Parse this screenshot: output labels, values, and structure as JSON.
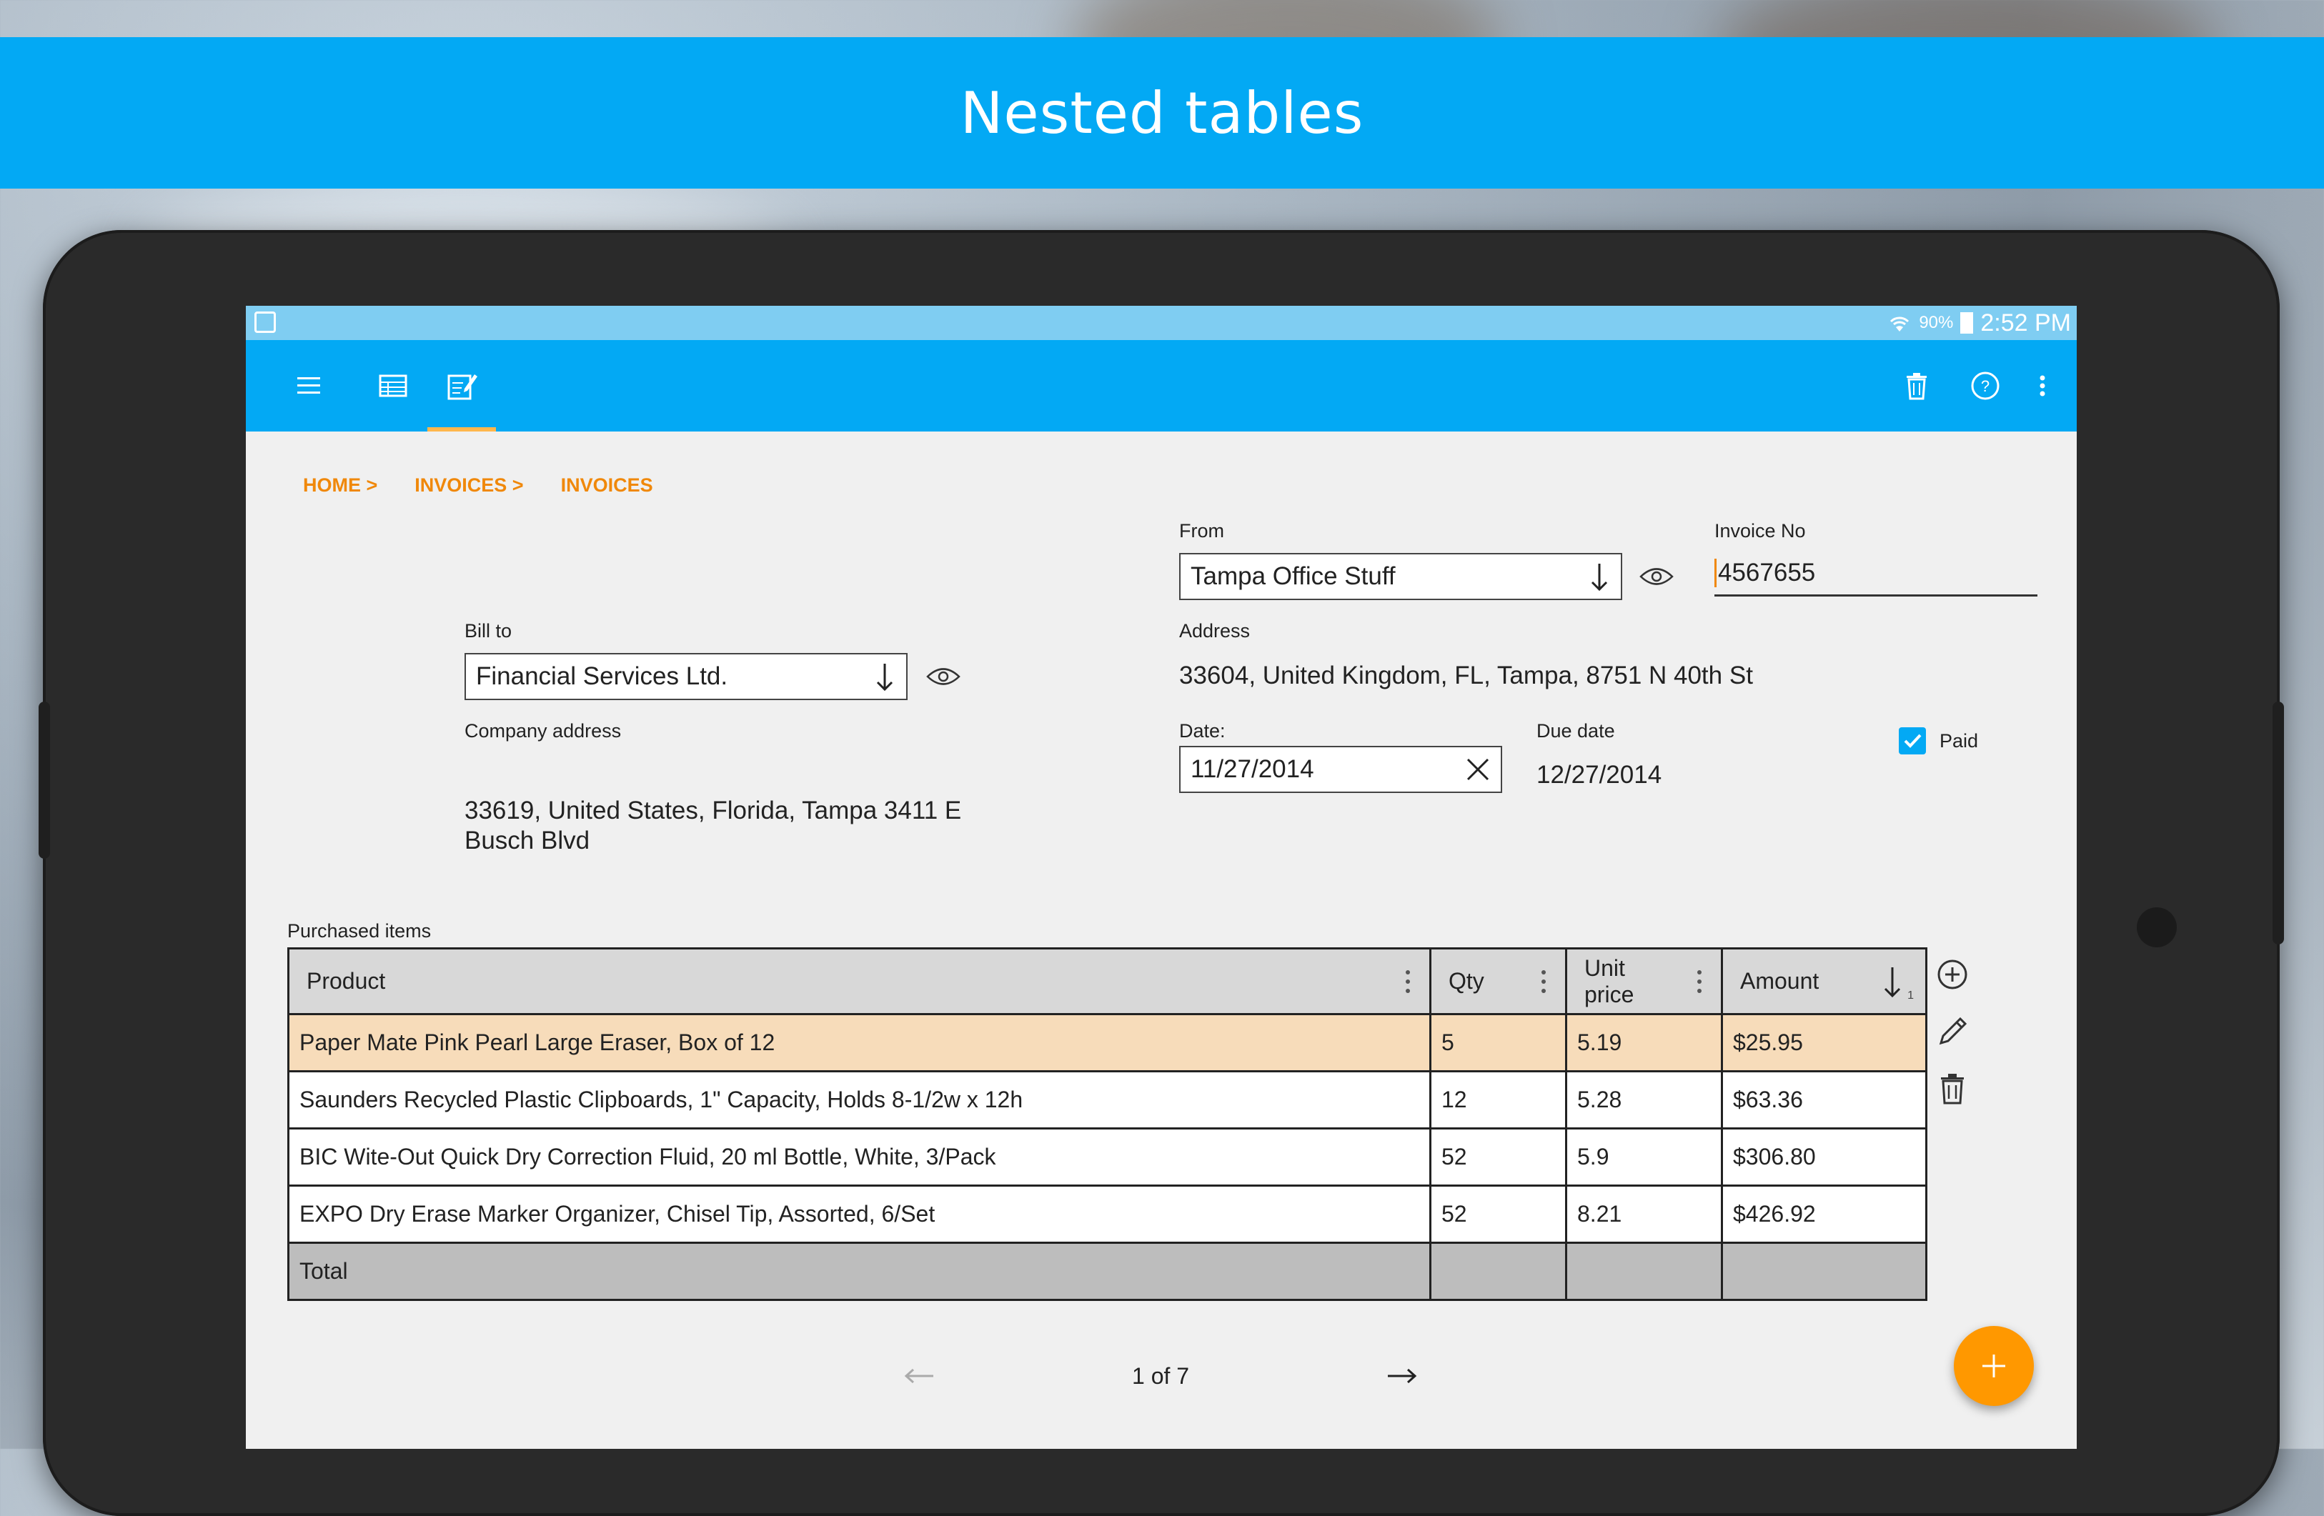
{
  "banner": {
    "title": "Nested tables"
  },
  "statusbar": {
    "battery": "90%",
    "time": "2:52 PM"
  },
  "toolbar": {
    "icons": [
      "menu-icon",
      "table-icon",
      "edit-form-icon",
      "delete-icon",
      "help-icon",
      "more-vert-icon"
    ],
    "active_tab": "edit-form-icon"
  },
  "breadcrumb": [
    "HOME >",
    "INVOICES >",
    "INVOICES"
  ],
  "form": {
    "from_label": "From",
    "from_value": "Tampa Office Stuff",
    "invoice_no_label": "Invoice No",
    "invoice_no_value": "4567655",
    "bill_to_label": "Bill to",
    "bill_to_value": "Financial Services Ltd.",
    "address_label": "Address",
    "address_value": "33604, United Kingdom, FL, Tampa, 8751 N 40th St",
    "company_address_label": "Company address",
    "company_address_value": "33619, United States, Florida, Tampa 3411 E Busch Blvd",
    "date_label": "Date:",
    "date_value": "11/27/2014",
    "due_date_label": "Due date",
    "due_date_value": "12/27/2014",
    "paid_label": "Paid",
    "paid_checked": true
  },
  "items": {
    "label": "Purchased items",
    "columns": [
      "Product",
      "Qty",
      "Unit price",
      "Amount"
    ],
    "sort_column": "Amount",
    "sort_index": "1",
    "rows": [
      {
        "product": "Paper Mate Pink Pearl Large Eraser, Box of 12",
        "qty": "5",
        "unit_price": "5.19",
        "amount": "$25.95",
        "selected": true
      },
      {
        "product": "Saunders Recycled Plastic Clipboards, 1\" Capacity, Holds 8-1/2w x 12h",
        "qty": "12",
        "unit_price": "5.28",
        "amount": "$63.36",
        "selected": false
      },
      {
        "product": "BIC Wite-Out Quick Dry Correction Fluid, 20 ml Bottle, White, 3/Pack",
        "qty": "52",
        "unit_price": "5.9",
        "amount": "$306.80",
        "selected": false
      },
      {
        "product": "EXPO Dry Erase Marker Organizer, Chisel Tip, Assorted, 6/Set",
        "qty": "52",
        "unit_price": "8.21",
        "amount": "$426.92",
        "selected": false
      }
    ],
    "total_label": "Total",
    "side_actions": [
      "add-circle-icon",
      "pencil-icon",
      "trash-icon"
    ]
  },
  "pager": {
    "text": "1 of 7",
    "prev_icon": "arrow-left-icon",
    "next_icon": "arrow-right-icon"
  },
  "colors": {
    "accent": "#03a9f4",
    "orange": "#ff9800",
    "selected_row": "#f7dcba",
    "crumb": "#f0880a"
  }
}
